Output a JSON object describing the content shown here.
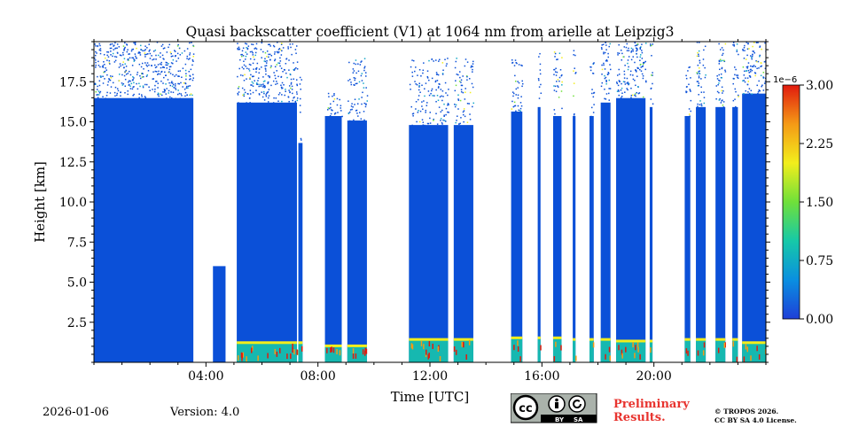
{
  "chart_data": {
    "type": "heatmap",
    "title": "Quasi backscatter coefficient (V1) at 1064 nm from arielle at Leipzig3",
    "xlabel": "Time [UTC]",
    "ylabel": "Height [km]",
    "xlim_hours": [
      0,
      24
    ],
    "ylim_km": [
      0,
      20
    ],
    "x_ticks": [
      {
        "value": 4,
        "label": "04:00"
      },
      {
        "value": 8,
        "label": "08:00"
      },
      {
        "value": 12,
        "label": "12:00"
      },
      {
        "value": 16,
        "label": "16:00"
      },
      {
        "value": 20,
        "label": "20:00"
      }
    ],
    "y_ticks": [
      {
        "value": 2.5,
        "label": "2.5"
      },
      {
        "value": 5.0,
        "label": "5.0"
      },
      {
        "value": 7.5,
        "label": "7.5"
      },
      {
        "value": 10.0,
        "label": "10.0"
      },
      {
        "value": 12.5,
        "label": "12.5"
      },
      {
        "value": 15.0,
        "label": "15.0"
      },
      {
        "value": 17.5,
        "label": "17.5"
      }
    ],
    "colorbar": {
      "range": [
        0,
        3e-06
      ],
      "exponent_label": "1e−6",
      "ticks": [
        {
          "value": 0.0,
          "label": "0.00"
        },
        {
          "value": 0.75,
          "label": "0.75"
        },
        {
          "value": 1.5,
          "label": "1.50"
        },
        {
          "value": 2.25,
          "label": "2.25"
        },
        {
          "value": 3.0,
          "label": "3.00"
        }
      ],
      "colors": [
        "#1e3fd8",
        "#0a8fe0",
        "#16c9a8",
        "#6fe03a",
        "#f2ee1c",
        "#f59a16",
        "#e11a0e"
      ]
    },
    "columns": [
      {
        "t0": 0.0,
        "t1": 3.55,
        "top": 20.0,
        "density": 0.8,
        "lowlayer": 0.0
      },
      {
        "t0": 4.25,
        "t1": 4.7,
        "top": 6.0,
        "density": 0.6,
        "lowlayer": 0.0
      },
      {
        "t0": 5.1,
        "t1": 7.25,
        "top": 20.0,
        "density": 0.75,
        "lowlayer": 1.2
      },
      {
        "t0": 7.3,
        "t1": 7.45,
        "top": 18.0,
        "density": 0.3,
        "lowlayer": 1.2
      },
      {
        "t0": 8.25,
        "t1": 8.85,
        "top": 17.0,
        "density": 0.6,
        "lowlayer": 1.0
      },
      {
        "t0": 9.05,
        "t1": 9.75,
        "top": 19.0,
        "density": 0.55,
        "lowlayer": 1.0
      },
      {
        "t0": 11.25,
        "t1": 12.65,
        "top": 19.0,
        "density": 0.5,
        "lowlayer": 1.4
      },
      {
        "t0": 12.85,
        "t1": 13.55,
        "top": 19.0,
        "density": 0.5,
        "lowlayer": 1.4
      },
      {
        "t0": 14.9,
        "t1": 15.3,
        "top": 19.0,
        "density": 0.65,
        "lowlayer": 1.5
      },
      {
        "t0": 15.85,
        "t1": 15.95,
        "top": 19.5,
        "density": 0.7,
        "lowlayer": 1.5
      },
      {
        "t0": 16.4,
        "t1": 16.7,
        "top": 19.5,
        "density": 0.6,
        "lowlayer": 1.5
      },
      {
        "t0": 17.1,
        "t1": 17.2,
        "top": 19.5,
        "density": 0.6,
        "lowlayer": 1.4
      },
      {
        "t0": 17.7,
        "t1": 17.85,
        "top": 19.5,
        "density": 0.6,
        "lowlayer": 1.4
      },
      {
        "t0": 18.1,
        "t1": 18.45,
        "top": 20.0,
        "density": 0.75,
        "lowlayer": 1.4
      },
      {
        "t0": 18.65,
        "t1": 19.7,
        "top": 20.0,
        "density": 0.8,
        "lowlayer": 1.3
      },
      {
        "t0": 19.85,
        "t1": 19.95,
        "top": 20.0,
        "density": 0.7,
        "lowlayer": 1.3
      },
      {
        "t0": 21.1,
        "t1": 21.3,
        "top": 19.0,
        "density": 0.6,
        "lowlayer": 1.4
      },
      {
        "t0": 21.5,
        "t1": 21.85,
        "top": 20.0,
        "density": 0.7,
        "lowlayer": 1.4
      },
      {
        "t0": 22.2,
        "t1": 22.55,
        "top": 20.0,
        "density": 0.7,
        "lowlayer": 1.4
      },
      {
        "t0": 22.8,
        "t1": 23.0,
        "top": 20.0,
        "density": 0.7,
        "lowlayer": 1.4
      },
      {
        "t0": 23.15,
        "t1": 24.0,
        "top": 20.0,
        "density": 0.85,
        "lowlayer": 1.2
      }
    ]
  },
  "footer": {
    "date": "2026-01-06",
    "version": "Version: 4.0",
    "license_badge": {
      "cc": "cc",
      "by": "BY",
      "sa": "SA",
      "icons": [
        "cc-icon",
        "by-person-icon",
        "sa-icon"
      ]
    },
    "preliminary_line1": "Preliminary",
    "preliminary_line2": "Results.",
    "copyright_line1": "© TROPOS 2026.",
    "copyright_line2": "CC BY SA 4.0 License."
  }
}
